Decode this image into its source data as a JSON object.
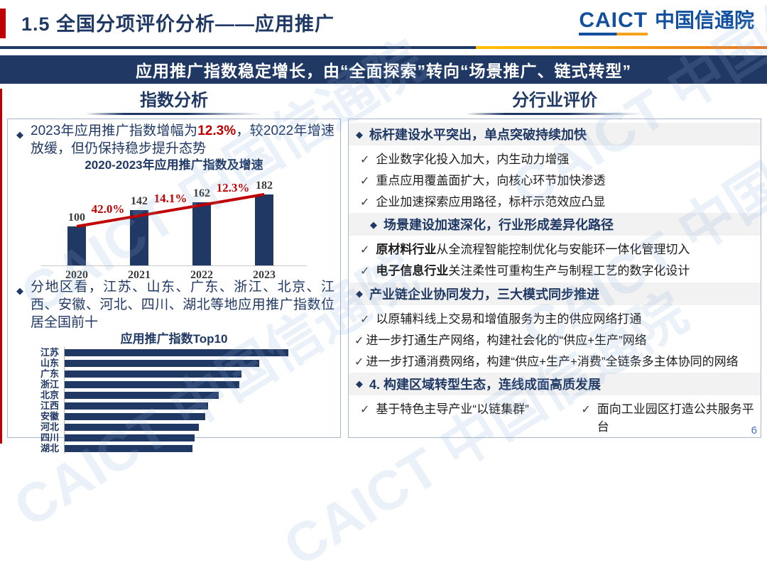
{
  "header": {
    "title": "1.5 全国分项评价分析——应用推广",
    "logo_en": "CAICT",
    "logo_cn": "中国信通院"
  },
  "banner": {
    "text": "应用推广指数稳定增长，由“全面探索”转向“场景推广、链式转型”"
  },
  "watermark": {
    "text": "CAICT 中国信通院"
  },
  "left": {
    "heading": "指数分析",
    "bullet1": {
      "pre": "2023年应用推广指数增幅为",
      "highlight": "12.3%",
      "post": "，较2022年增速放缓，但仍保持稳步提升态势"
    },
    "bullet2": "分地区看，江苏、山东、广东、浙江、北京、江西、安徽、河北、四川、湖北等地应用推广指数位居全国前十"
  },
  "chart_data": [
    {
      "type": "bar",
      "title": "2020-2023年应用推广指数及增速",
      "categories": [
        "2020",
        "2021",
        "2022",
        "2023"
      ],
      "values": [
        100,
        142,
        162,
        182
      ],
      "growth_labels": [
        "42.0%",
        "14.1%",
        "12.3%"
      ],
      "bar_color": "#1f3864",
      "line_color": "#c00000",
      "ylim": [
        0,
        200
      ],
      "grid": false,
      "legend": "none"
    },
    {
      "type": "bar",
      "orientation": "horizontal",
      "title": "应用推广指数Top10",
      "categories": [
        "江苏",
        "山东",
        "广东",
        "浙江",
        "北京",
        "江西",
        "安徽",
        "河北",
        "四川",
        "湖北"
      ],
      "values": [
        100,
        87,
        79,
        78,
        69,
        64,
        63,
        60,
        58,
        57
      ],
      "bar_color": "#1f3864",
      "grid": false,
      "legend": "none"
    }
  ],
  "right": {
    "heading": "分行业评价",
    "items": [
      {
        "type": "header",
        "text": "标杆建设水平突出，单点突破持续加快",
        "indent": false
      },
      {
        "type": "check",
        "text": "企业数字化投入加大，内生动力增强"
      },
      {
        "type": "check",
        "text": "重点应用覆盖面扩大，向核心环节加快渗透"
      },
      {
        "type": "check",
        "text": "企业加速探索应用路径，标杆示范效应凸显"
      },
      {
        "type": "header",
        "text": "场景建设加速深化，行业形成差异化路径",
        "indent": true
      },
      {
        "type": "check",
        "bold": "原材料行业",
        "text": "从全流程智能控制优化与安能环一体化管理切入"
      },
      {
        "type": "check",
        "bold": "电子信息行业",
        "text": "关注柔性可重构生产与制程工艺的数字化设计"
      },
      {
        "type": "header",
        "text": "产业链企业协同发力，三大模式同步推进",
        "indent": false
      },
      {
        "type": "check",
        "text": "以原辅料线上交易和增值服务为主的供应网络打通"
      },
      {
        "type": "check",
        "nospace": true,
        "text": "进一步打通生产网络，构建社会化的“供应+生产”网络"
      },
      {
        "type": "check",
        "nospace": true,
        "text": "进一步打通消费网络，构建“供应+生产+消费”全链条多主体协同的网络"
      },
      {
        "type": "header",
        "text": "4. 构建区域转型生态，连线成面高质发展",
        "indent": false
      },
      {
        "type": "check2",
        "left": "基于特色主导产业“以链集群”",
        "right": "面向工业园区打造公共服务平台"
      }
    ]
  },
  "page_number": "6",
  "colors": {
    "navy": "#1f3864",
    "red_accent": "#c00000",
    "band_gray": "#f2f2f2",
    "logo_blue": "#10509e",
    "logo_orange": "#f7a21a",
    "page_blue": "#4472c4"
  }
}
